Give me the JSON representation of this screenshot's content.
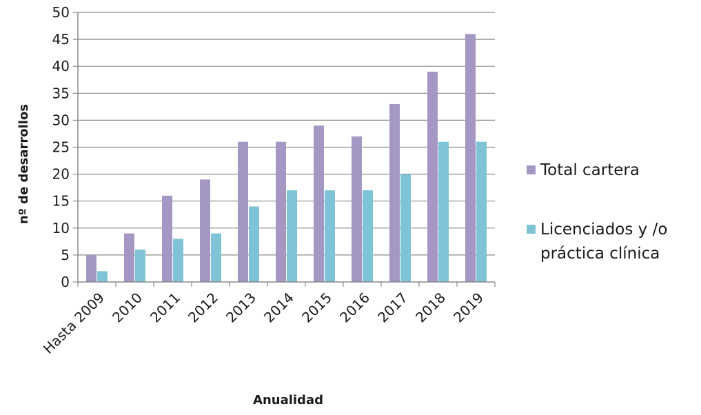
{
  "chart_data": {
    "type": "bar",
    "title": "",
    "xlabel": "Anualidad",
    "ylabel": "nº de desarrollos",
    "ylim": [
      0,
      50
    ],
    "yticks": [
      0,
      5,
      10,
      15,
      20,
      25,
      30,
      35,
      40,
      45,
      50
    ],
    "grid": true,
    "legend_position": "right",
    "categories": [
      "Hasta 2009",
      "2010",
      "2011",
      "2012",
      "2013",
      "2014",
      "2015",
      "2016",
      "2017",
      "2018",
      "2019"
    ],
    "series": [
      {
        "name": "Total cartera",
        "color": "#a597c4",
        "values": [
          5,
          9,
          16,
          19,
          26,
          26,
          29,
          27,
          33,
          39,
          46
        ]
      },
      {
        "name": "Licenciados y /o práctica clínica",
        "legend_lines": [
          "Licenciados y /o",
          "práctica clínica"
        ],
        "color": "#7fc3d6",
        "values": [
          2,
          6,
          8,
          9,
          14,
          17,
          17,
          17,
          20,
          26,
          26
        ]
      }
    ]
  }
}
